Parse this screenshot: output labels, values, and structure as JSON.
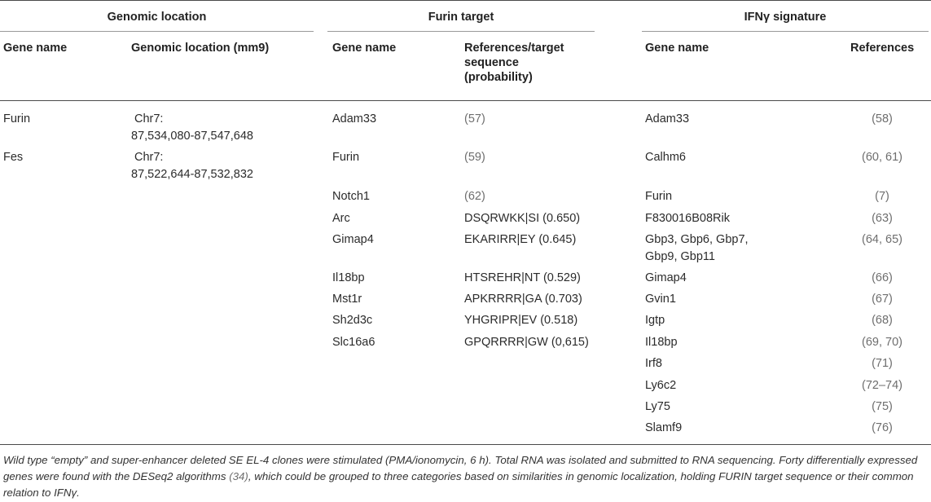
{
  "groups": {
    "genomic": "Genomic location",
    "furin": "Furin target",
    "ifn": "IFNγ signature"
  },
  "columns": {
    "gene_name_1": "Gene name",
    "genomic_location": "Genomic location (mm9)",
    "gene_name_2": "Gene name",
    "ref_target_1": "References/target",
    "ref_target_2": "sequence",
    "ref_target_3": "(probability)",
    "gene_name_3": "Gene name",
    "references": "References"
  },
  "genomic_rows": [
    {
      "gene": "Furin",
      "loc1": "Chr7:",
      "loc2": "87,534,080-87,547,648"
    },
    {
      "gene": "Fes",
      "loc1": "Chr7:",
      "loc2": "87,522,644-87,532,832"
    }
  ],
  "furin_rows": [
    {
      "gene": "Adam33",
      "pre": "(",
      "ref": "57",
      "post": ")"
    },
    {
      "gene": "Furin",
      "pre": "(",
      "ref": "59",
      "post": ")"
    },
    {
      "gene": "Notch1",
      "pre": "(",
      "ref": "62",
      "post": ")"
    },
    {
      "gene": "Arc",
      "seq": "DSQRWKK|SI (0.650)"
    },
    {
      "gene": "Gimap4",
      "seq": "EKARIRR|EY (0.645)"
    },
    {
      "gene": "Il18bp",
      "seq": "HTSREHR|NT (0.529)"
    },
    {
      "gene": "Mst1r",
      "seq": "APKRRRR|GA (0.703)"
    },
    {
      "gene": "Sh2d3c",
      "seq": "YHGRIPR|EV (0.518)"
    },
    {
      "gene": "Slc16a6",
      "seq": "GPQRRRR|GW (0,615)"
    }
  ],
  "ifn_rows": [
    {
      "gene": "Adam33",
      "ref": "(58)"
    },
    {
      "gene": "Calhm6",
      "ref": "(60, 61)"
    },
    {
      "gene": "Furin",
      "ref": "(7)"
    },
    {
      "gene": "F830016B08Rik",
      "ref": "(63)"
    },
    {
      "gene": "Gbp3, Gbp6, Gbp7,",
      "gene2": "Gbp9, Gbp11",
      "ref": "(64, 65)"
    },
    {
      "gene": "Gimap4",
      "ref": "(66)"
    },
    {
      "gene": "Gvin1",
      "ref": "(67)"
    },
    {
      "gene": "Igtp",
      "ref": "(68)"
    },
    {
      "gene": "Il18bp",
      "ref": "(69, 70)"
    },
    {
      "gene": "Irf8",
      "ref": "(71)"
    },
    {
      "gene": "Ly6c2",
      "ref": "(72–74)"
    },
    {
      "gene": "Ly75",
      "ref": "(75)"
    },
    {
      "gene": "Slamf9",
      "ref": "(76)"
    }
  ],
  "footnote": {
    "part1": "Wild type “empty” and super-enhancer deleted SE EL-4 clones were stimulated (PMA/ionomycin, 6 h). Total RNA was isolated and submitted to RNA sequencing. Forty differentially expressed genes were found with the DESeq2 algorithms ",
    "ref": "(34)",
    "part2": ", which could be grouped to three categories based on similarities in genomic localization, holding FURIN target sequence or their common relation to IFNγ."
  }
}
